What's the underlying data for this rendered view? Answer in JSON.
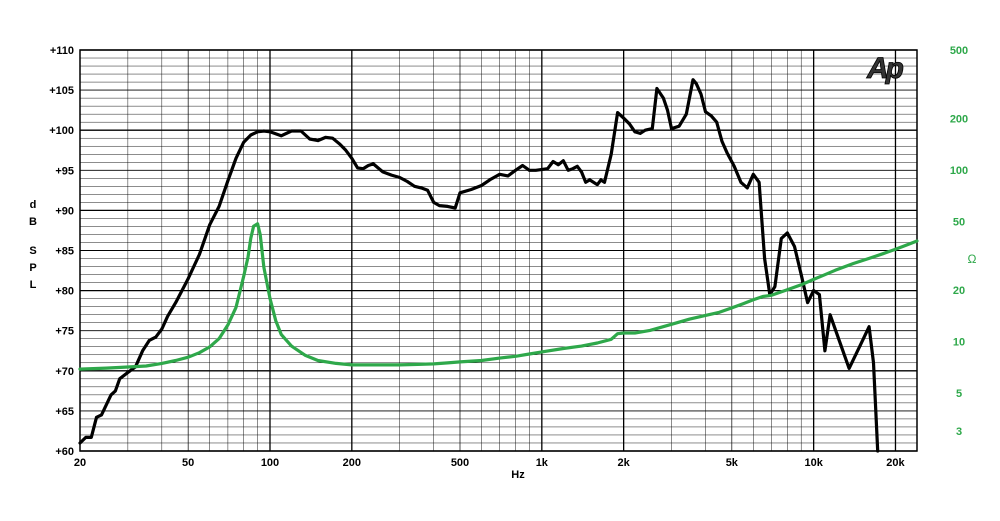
{
  "chart_data": {
    "type": "line",
    "xlabel": "Hz",
    "ylabel": "dB SPL",
    "y2label": "Ω",
    "xscale": "log",
    "xlim": [
      20,
      24000
    ],
    "ylim": [
      60,
      110
    ],
    "y2scale": "log",
    "y2lim": [
      2.3,
      500
    ],
    "grid": true,
    "x_ticks": [
      {
        "value": 20,
        "label": "20"
      },
      {
        "value": 50,
        "label": "50"
      },
      {
        "value": 100,
        "label": "100"
      },
      {
        "value": 200,
        "label": "200"
      },
      {
        "value": 500,
        "label": "500"
      },
      {
        "value": 1000,
        "label": "1k"
      },
      {
        "value": 2000,
        "label": "2k"
      },
      {
        "value": 5000,
        "label": "5k"
      },
      {
        "value": 10000,
        "label": "10k"
      },
      {
        "value": 20000,
        "label": "20k"
      }
    ],
    "y_ticks": [
      {
        "value": 110,
        "label": "+110"
      },
      {
        "value": 105,
        "label": "+105"
      },
      {
        "value": 100,
        "label": "+100"
      },
      {
        "value": 95,
        "label": "+95"
      },
      {
        "value": 90,
        "label": "+90"
      },
      {
        "value": 85,
        "label": "+85"
      },
      {
        "value": 80,
        "label": "+80"
      },
      {
        "value": 75,
        "label": "+75"
      },
      {
        "value": 70,
        "label": "+70"
      },
      {
        "value": 65,
        "label": "+65"
      },
      {
        "value": 60,
        "label": "+60"
      }
    ],
    "y2_ticks": [
      {
        "value": 500,
        "label": "500"
      },
      {
        "value": 200,
        "label": "200"
      },
      {
        "value": 100,
        "label": "100"
      },
      {
        "value": 50,
        "label": "50"
      },
      {
        "value": 20,
        "label": "20"
      },
      {
        "value": 10,
        "label": "10"
      },
      {
        "value": 5,
        "label": "5"
      },
      {
        "value": 3,
        "label": "3"
      }
    ],
    "logo": "Ap",
    "series": [
      {
        "color": "#000000",
        "axis": "left",
        "points": [
          [
            20,
            61
          ],
          [
            21,
            61.7
          ],
          [
            22,
            61.7
          ],
          [
            23,
            64.2
          ],
          [
            24,
            64.5
          ],
          [
            26,
            67
          ],
          [
            27,
            67.5
          ],
          [
            28,
            69
          ],
          [
            30,
            69.8
          ],
          [
            32,
            70.5
          ],
          [
            34,
            72.5
          ],
          [
            36,
            73.8
          ],
          [
            38,
            74.2
          ],
          [
            40,
            75.2
          ],
          [
            42,
            76.8
          ],
          [
            45,
            78.5
          ],
          [
            50,
            81.5
          ],
          [
            55,
            84.5
          ],
          [
            60,
            88.2
          ],
          [
            65,
            90.5
          ],
          [
            70,
            93.7
          ],
          [
            75,
            96.5
          ],
          [
            80,
            98.5
          ],
          [
            85,
            99.4
          ],
          [
            90,
            99.8
          ],
          [
            95,
            99.9
          ],
          [
            100,
            99.8
          ],
          [
            110,
            99.3
          ],
          [
            120,
            99.9
          ],
          [
            130,
            99.9
          ],
          [
            140,
            98.9
          ],
          [
            150,
            98.7
          ],
          [
            160,
            99.1
          ],
          [
            170,
            99
          ],
          [
            180,
            98.3
          ],
          [
            190,
            97.5
          ],
          [
            200,
            96.5
          ],
          [
            210,
            95.3
          ],
          [
            220,
            95.2
          ],
          [
            230,
            95.6
          ],
          [
            240,
            95.8
          ],
          [
            260,
            94.8
          ],
          [
            280,
            94.4
          ],
          [
            300,
            94.1
          ],
          [
            320,
            93.6
          ],
          [
            340,
            93
          ],
          [
            360,
            92.8
          ],
          [
            380,
            92.5
          ],
          [
            400,
            91
          ],
          [
            420,
            90.6
          ],
          [
            450,
            90.5
          ],
          [
            480,
            90.3
          ],
          [
            500,
            92.2
          ],
          [
            550,
            92.6
          ],
          [
            600,
            93.1
          ],
          [
            650,
            93.9
          ],
          [
            700,
            94.5
          ],
          [
            750,
            94.3
          ],
          [
            800,
            95
          ],
          [
            850,
            95.6
          ],
          [
            900,
            95
          ],
          [
            950,
            95
          ],
          [
            1050,
            95.2
          ],
          [
            1100,
            96.1
          ],
          [
            1150,
            95.7
          ],
          [
            1200,
            96.2
          ],
          [
            1250,
            95
          ],
          [
            1300,
            95.2
          ],
          [
            1350,
            95.5
          ],
          [
            1400,
            94.8
          ],
          [
            1450,
            93.5
          ],
          [
            1500,
            93.8
          ],
          [
            1600,
            93.2
          ],
          [
            1650,
            93.8
          ],
          [
            1700,
            93.5
          ],
          [
            1800,
            97
          ],
          [
            1900,
            102.2
          ],
          [
            2000,
            101.5
          ],
          [
            2100,
            100.8
          ],
          [
            2200,
            99.8
          ],
          [
            2300,
            99.6
          ],
          [
            2400,
            100
          ],
          [
            2550,
            100.2
          ],
          [
            2650,
            105.2
          ],
          [
            2800,
            104
          ],
          [
            2900,
            102.5
          ],
          [
            3000,
            100.2
          ],
          [
            3200,
            100.5
          ],
          [
            3400,
            102
          ],
          [
            3600,
            106.3
          ],
          [
            3700,
            105.8
          ],
          [
            3850,
            104.5
          ],
          [
            4000,
            102.3
          ],
          [
            4200,
            101.8
          ],
          [
            4400,
            101
          ],
          [
            4600,
            98.6
          ],
          [
            4800,
            97.2
          ],
          [
            5100,
            95.5
          ],
          [
            5400,
            93.5
          ],
          [
            5700,
            92.8
          ],
          [
            6000,
            94.5
          ],
          [
            6300,
            93.5
          ],
          [
            6600,
            84
          ],
          [
            6900,
            79.5
          ],
          [
            7200,
            80.5
          ],
          [
            7600,
            86.5
          ],
          [
            8000,
            87.2
          ],
          [
            8500,
            85.5
          ],
          [
            9000,
            82
          ],
          [
            9500,
            78.5
          ],
          [
            10000,
            80
          ],
          [
            10500,
            79.5
          ],
          [
            11000,
            72.5
          ],
          [
            11500,
            77
          ],
          [
            12500,
            73.5
          ],
          [
            13500,
            70.3
          ],
          [
            15000,
            73.5
          ],
          [
            16000,
            75.5
          ],
          [
            16600,
            71
          ],
          [
            17200,
            60
          ]
        ]
      },
      {
        "color": "#2ea84a",
        "axis": "right",
        "points": [
          [
            20,
            6.9
          ],
          [
            25,
            7.0
          ],
          [
            30,
            7.1
          ],
          [
            35,
            7.2
          ],
          [
            40,
            7.45
          ],
          [
            45,
            7.75
          ],
          [
            50,
            8.1
          ],
          [
            55,
            8.6
          ],
          [
            60,
            9.3
          ],
          [
            65,
            10.4
          ],
          [
            70,
            12.5
          ],
          [
            75,
            15.8
          ],
          [
            80,
            24
          ],
          [
            83,
            31
          ],
          [
            85,
            40
          ],
          [
            87,
            47
          ],
          [
            90,
            48.5
          ],
          [
            92,
            42
          ],
          [
            95,
            27
          ],
          [
            100,
            17.8
          ],
          [
            105,
            13.2
          ],
          [
            110,
            11
          ],
          [
            120,
            9.4
          ],
          [
            135,
            8.3
          ],
          [
            150,
            7.75
          ],
          [
            175,
            7.45
          ],
          [
            200,
            7.3
          ],
          [
            250,
            7.3
          ],
          [
            300,
            7.3
          ],
          [
            350,
            7.35
          ],
          [
            400,
            7.4
          ],
          [
            450,
            7.5
          ],
          [
            500,
            7.6
          ],
          [
            600,
            7.75
          ],
          [
            700,
            8
          ],
          [
            800,
            8.2
          ],
          [
            900,
            8.45
          ],
          [
            1000,
            8.7
          ],
          [
            1200,
            9.1
          ],
          [
            1400,
            9.4
          ],
          [
            1600,
            9.8
          ],
          [
            1800,
            10.3
          ],
          [
            1900,
            11.1
          ],
          [
            2000,
            11.2
          ],
          [
            2200,
            11.2
          ],
          [
            2500,
            11.6
          ],
          [
            3000,
            12.6
          ],
          [
            3500,
            13.5
          ],
          [
            4000,
            14.2
          ],
          [
            4500,
            14.8
          ],
          [
            5000,
            15.7
          ],
          [
            5500,
            16.6
          ],
          [
            6000,
            17.5
          ],
          [
            6500,
            18.3
          ],
          [
            7000,
            18.6
          ],
          [
            8000,
            20
          ],
          [
            9000,
            21.4
          ],
          [
            10000,
            23
          ],
          [
            11000,
            24.5
          ],
          [
            12000,
            26
          ],
          [
            14000,
            28.5
          ],
          [
            16000,
            30.5
          ],
          [
            18000,
            32.5
          ],
          [
            20000,
            34.5
          ],
          [
            22000,
            36.5
          ],
          [
            24000,
            38.5
          ]
        ]
      }
    ]
  }
}
